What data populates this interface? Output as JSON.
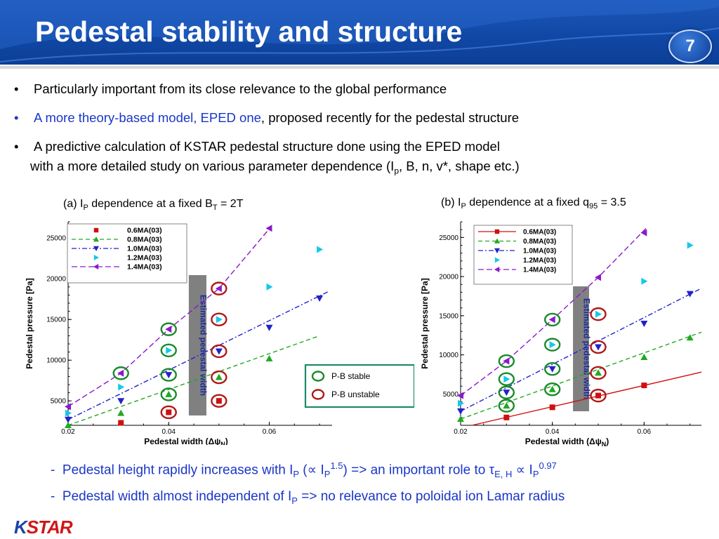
{
  "title": "Pedestal stability and structure",
  "page_number": "7",
  "bullets": [
    {
      "prefix": "•",
      "text": "Particularly important from its close relevance to the global performance"
    },
    {
      "prefix": "•",
      "link": "A more theory-based model, EPED one",
      "text": ", proposed recently for the pedestal structure"
    },
    {
      "prefix": "•",
      "text": "A predictive calculation of KSTAR pedestal structure done using the EPED model",
      "line2_a": "with a more detailed study on various parameter dependence (I",
      "line2_sub": "p",
      "line2_b": ", B, n, v*, shape etc.)"
    }
  ],
  "captions": {
    "a": {
      "pre": "(a) I",
      "sub1": "P",
      "mid": " dependence at a fixed B",
      "sub2": "T",
      "post": " = 2T"
    },
    "b": {
      "pre": "(b) I",
      "sub1": "P",
      "mid": " dependence at a fixed q",
      "sub2": "95",
      "post": " = 3.5"
    }
  },
  "observations": [
    {
      "prefix": "-",
      "a": "Pedestal height rapidly increases with I",
      "sub": "P",
      "b": " (∝ I",
      "sub2": "P",
      "sup": "1.5",
      "c": ") => an important role to τ",
      "sub3": "E, H",
      "d": " ∝ I",
      "sub4": "P",
      "sup2": "0.97"
    },
    {
      "prefix": "-",
      "a": "Pedestal width almost independent of I",
      "sub": "P",
      "b": "  => no relevance to poloidal ion Lamar radius"
    }
  ],
  "logo": {
    "k": "K",
    "rest": "STAR"
  },
  "colors": {
    "s06": "#d01010",
    "s08": "#22a822",
    "s10": "#2222cc",
    "s12": "#16c8e8",
    "s14": "#8a1acc",
    "stable": "#1a8a2a",
    "unstable": "#b01818",
    "box": "#808080"
  },
  "chart_data": [
    {
      "type": "scatter",
      "xlabel": "Pedestal width (Δψ",
      "xlabel_sub": "N",
      "xlabel_end": ")",
      "ylabel": "Pedestal pressure [Pa]",
      "xlim": [
        0.02,
        0.0725
      ],
      "ylim": [
        2000,
        27000
      ],
      "xticks": [
        0.02,
        0.04,
        0.06
      ],
      "yticks": [
        5000,
        10000,
        15000,
        20000,
        25000
      ],
      "legend_position": "top-left",
      "box_label": "Estimated pedestal width",
      "box_x": [
        0.044,
        0.0475
      ],
      "stable_label": "P-B  stable",
      "unstable_label": "P-B unstable",
      "series": [
        {
          "name": "0.6MA(03)",
          "marker": "square",
          "points": [
            [
              0.0305,
              2300
            ],
            [
              0.04,
              3600
            ],
            [
              0.05,
              5000
            ]
          ],
          "fit": []
        },
        {
          "name": "0.8MA(03)",
          "marker": "triangle-up",
          "points": [
            [
              0.02,
              2000
            ],
            [
              0.0305,
              3500
            ],
            [
              0.04,
              5800
            ],
            [
              0.05,
              7900
            ],
            [
              0.06,
              10200
            ]
          ],
          "fit": [
            [
              0.02,
              2000
            ],
            [
              0.07,
              13000
            ]
          ]
        },
        {
          "name": "1.0MA(03)",
          "marker": "triangle-down",
          "points": [
            [
              0.02,
              2700
            ],
            [
              0.0305,
              5000
            ],
            [
              0.04,
              8200
            ],
            [
              0.05,
              11100
            ],
            [
              0.06,
              14000
            ],
            [
              0.07,
              17600
            ]
          ],
          "fit": [
            [
              0.02,
              2700
            ],
            [
              0.072,
              18500
            ]
          ]
        },
        {
          "name": "1.2MA(03)",
          "marker": "triangle-right",
          "points": [
            [
              0.02,
              3500
            ],
            [
              0.0305,
              6700
            ],
            [
              0.04,
              11200
            ],
            [
              0.05,
              15000
            ],
            [
              0.06,
              19000
            ],
            [
              0.07,
              23600
            ]
          ],
          "fit": []
        },
        {
          "name": "1.4MA(03)",
          "marker": "triangle-left",
          "points": [
            [
              0.02,
              4300
            ],
            [
              0.0305,
              8400
            ],
            [
              0.04,
              13800
            ],
            [
              0.05,
              18800
            ],
            [
              0.06,
              26200
            ]
          ],
          "fit": [
            [
              0.02,
              4300
            ],
            [
              0.0305,
              8400
            ],
            [
              0.04,
              13800
            ],
            [
              0.05,
              18800
            ],
            [
              0.0605,
              26500
            ]
          ]
        }
      ],
      "stable_circles": [
        [
          0.0305,
          8400
        ],
        [
          0.04,
          5800
        ],
        [
          0.04,
          8200
        ],
        [
          0.04,
          11200
        ],
        [
          0.04,
          13800
        ]
      ],
      "unstable_circles": [
        [
          0.04,
          3600
        ],
        [
          0.05,
          5000
        ],
        [
          0.05,
          7900
        ],
        [
          0.05,
          11100
        ],
        [
          0.05,
          15000
        ],
        [
          0.05,
          18800
        ]
      ]
    },
    {
      "type": "scatter",
      "xlabel": "Pedestal width (Δψ",
      "xlabel_sub": "N",
      "xlabel_end": ")",
      "ylabel": "Pedestal pressure [Pa]",
      "xlim": [
        0.02,
        0.0725
      ],
      "ylim": [
        1000,
        27000
      ],
      "xticks": [
        0.02,
        0.04,
        0.06
      ],
      "yticks": [
        5000,
        10000,
        15000,
        20000,
        25000
      ],
      "legend_position": "top-left",
      "box_label": "Estimated pedestal width",
      "box_x": [
        0.0445,
        0.048
      ],
      "series": [
        {
          "name": "0.6MA(03)",
          "marker": "square",
          "points": [
            [
              0.03,
              2000
            ],
            [
              0.04,
              3300
            ],
            [
              0.05,
              4800
            ],
            [
              0.06,
              6100
            ]
          ],
          "fit": [
            [
              0.0225,
              1000
            ],
            [
              0.0725,
              7800
            ]
          ]
        },
        {
          "name": "0.8MA(03)",
          "marker": "triangle-up",
          "points": [
            [
              0.02,
              1800
            ],
            [
              0.03,
              3500
            ],
            [
              0.04,
              5600
            ],
            [
              0.05,
              7700
            ],
            [
              0.06,
              9700
            ],
            [
              0.07,
              12200
            ]
          ],
          "fit": [
            [
              0.02,
              1800
            ],
            [
              0.0725,
              12900
            ]
          ]
        },
        {
          "name": "1.0MA(03)",
          "marker": "triangle-down",
          "points": [
            [
              0.02,
              2800
            ],
            [
              0.03,
              5200
            ],
            [
              0.04,
              8200
            ],
            [
              0.05,
              11000
            ],
            [
              0.06,
              14000
            ],
            [
              0.07,
              17800
            ]
          ],
          "fit": [
            [
              0.02,
              2800
            ],
            [
              0.0725,
              18500
            ]
          ]
        },
        {
          "name": "1.2MA(03)",
          "marker": "triangle-right",
          "points": [
            [
              0.02,
              3800
            ],
            [
              0.03,
              6900
            ],
            [
              0.04,
              11300
            ],
            [
              0.05,
              15200
            ],
            [
              0.06,
              19400
            ],
            [
              0.07,
              24000
            ]
          ],
          "fit": []
        },
        {
          "name": "1.4MA(03)",
          "marker": "triangle-left",
          "points": [
            [
              0.02,
              4800
            ],
            [
              0.03,
              9200
            ],
            [
              0.04,
              14500
            ],
            [
              0.05,
              19900
            ],
            [
              0.06,
              25600
            ]
          ],
          "fit": [
            [
              0.02,
              4800
            ],
            [
              0.03,
              9200
            ],
            [
              0.04,
              14500
            ],
            [
              0.05,
              19900
            ],
            [
              0.0605,
              26200
            ]
          ]
        }
      ],
      "stable_circles": [
        [
          0.03,
          3500
        ],
        [
          0.03,
          5200
        ],
        [
          0.03,
          6900
        ],
        [
          0.03,
          9200
        ],
        [
          0.04,
          5600
        ],
        [
          0.04,
          8200
        ],
        [
          0.04,
          11300
        ],
        [
          0.04,
          14500
        ]
      ],
      "unstable_circles": [
        [
          0.05,
          4800
        ],
        [
          0.05,
          7700
        ],
        [
          0.05,
          11000
        ],
        [
          0.05,
          15200
        ]
      ]
    }
  ]
}
